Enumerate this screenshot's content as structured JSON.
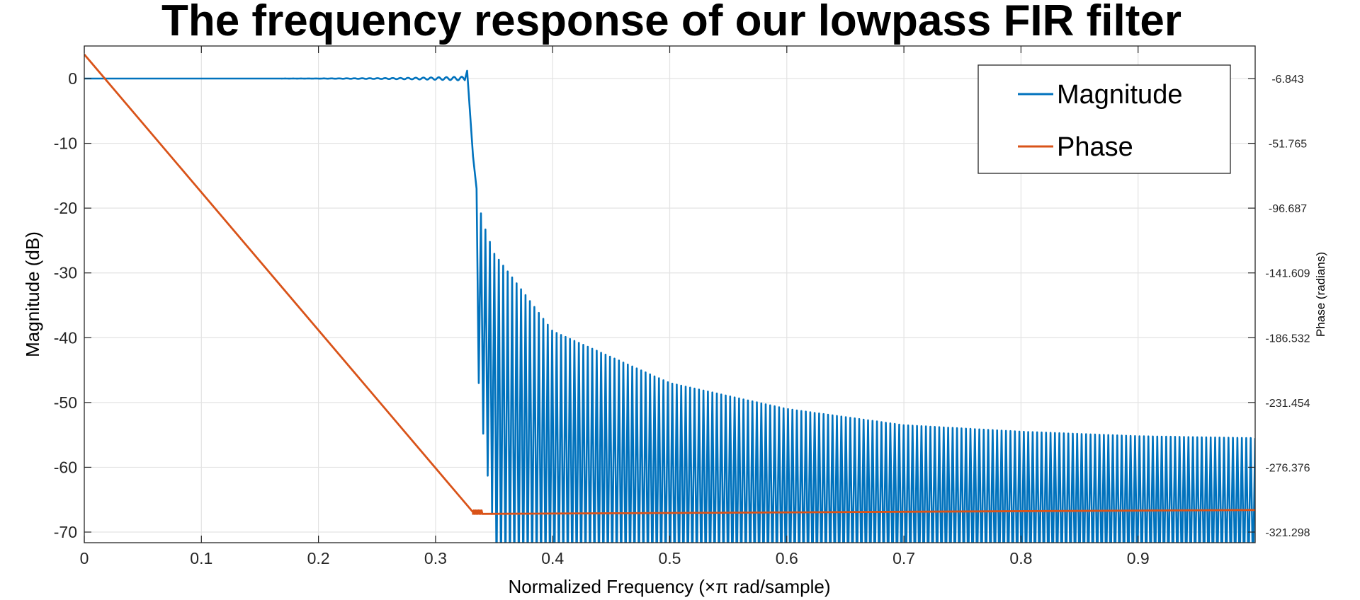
{
  "chart_data": {
    "type": "line",
    "title": "The frequency response of our lowpass FIR filter",
    "xlabel": "Normalized Frequency (×π rad/sample)",
    "ylabel": "Magnitude (dB)",
    "ylabel_right": "Phase (radians)",
    "xlim": [
      0,
      1
    ],
    "ylim": [
      -72,
      5
    ],
    "xticks": [
      "0",
      "0.1",
      "0.2",
      "0.3",
      "0.4",
      "0.5",
      "0.6",
      "0.7",
      "0.8",
      "0.9"
    ],
    "xtick_values": [
      0,
      0.1,
      0.2,
      0.3,
      0.4,
      0.5,
      0.6,
      0.7,
      0.8,
      0.9
    ],
    "yticks": [
      "0",
      "-10",
      "-20",
      "-30",
      "-40",
      "-50",
      "-60",
      "-70"
    ],
    "ytick_values": [
      0,
      -10,
      -20,
      -30,
      -40,
      -50,
      -60,
      -70
    ],
    "yticks_right": [
      "-6.843",
      "-51.765",
      "-96.687",
      "-141.609",
      "-186.532",
      "-231.454",
      "-276.376",
      "-321.298"
    ],
    "grid": true,
    "legend_position": "top-right",
    "series": [
      {
        "name": "Magnitude",
        "color": "#0072BD",
        "axis": "left",
        "passband": {
          "x": [
            0,
            0.325
          ],
          "y_db": 0,
          "ripple_db": 0.3
        },
        "overshoot": {
          "x": 0.327,
          "y_db": 1.2
        },
        "transition_edge": 0.332,
        "stopband_envelope": {
          "x": [
            0.335,
            0.34,
            0.35,
            0.4,
            0.5,
            0.6,
            0.7,
            0.8,
            0.9,
            1.0
          ],
          "y_db": [
            -17,
            -22,
            -27,
            -39,
            -47,
            -51,
            -53.5,
            -54.5,
            -55.2,
            -55.5
          ]
        },
        "stopband_lobes": 175,
        "floor_db": -72
      },
      {
        "name": "Phase",
        "color": "#D95319",
        "axis": "right",
        "x": [
          0,
          0.332,
          0.34,
          1.0
        ],
        "y": [
          9.9,
          -307.5,
          -307.5,
          -306.0
        ]
      }
    ]
  }
}
